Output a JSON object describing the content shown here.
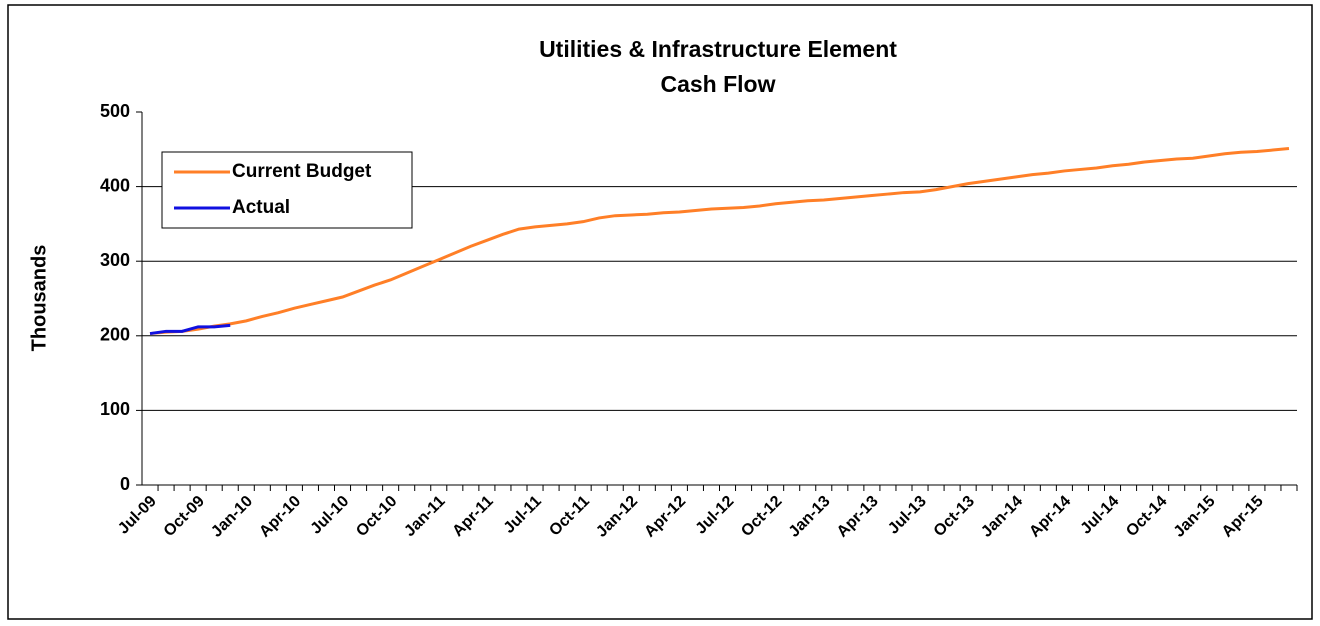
{
  "chart_data": {
    "type": "line",
    "title": [
      "Utilities & Infrastructure Element",
      "Cash Flow"
    ],
    "y_label": "Thousands",
    "categories": [
      "Jul-09",
      null,
      null,
      "Oct-09",
      null,
      null,
      "Jan-10",
      null,
      null,
      "Apr-10",
      null,
      null,
      "Jul-10",
      null,
      null,
      "Oct-10",
      null,
      null,
      "Jan-11",
      null,
      null,
      "Apr-11",
      null,
      null,
      "Jul-11",
      null,
      null,
      "Oct-11",
      null,
      null,
      "Jan-12",
      null,
      null,
      "Apr-12",
      null,
      null,
      "Jul-12",
      null,
      null,
      "Oct-12",
      null,
      null,
      "Jan-13",
      null,
      null,
      "Apr-13",
      null,
      null,
      "Jul-13",
      null,
      null,
      "Oct-13",
      null,
      null,
      "Jan-14",
      null,
      null,
      "Apr-14",
      null,
      null,
      "Jul-14",
      null,
      null,
      "Oct-14",
      null,
      null,
      "Jan-15",
      null,
      null,
      "Apr-15",
      null,
      null
    ],
    "series": [
      {
        "name": "Current Budget",
        "color": "#ff7f27",
        "values": [
          203,
          205,
          206,
          209,
          213,
          216,
          220,
          226,
          231,
          237,
          242,
          247,
          252,
          260,
          268,
          275,
          284,
          293,
          302,
          311,
          320,
          328,
          336,
          343,
          346,
          348,
          350,
          353,
          358,
          361,
          362,
          363,
          365,
          366,
          368,
          370,
          371,
          372,
          374,
          377,
          379,
          381,
          382,
          384,
          386,
          388,
          390,
          392,
          393,
          396,
          400,
          404,
          407,
          410,
          413,
          416,
          418,
          421,
          423,
          425,
          428,
          430,
          433,
          435,
          437,
          438,
          441,
          444,
          446,
          447,
          449,
          451
        ]
      },
      {
        "name": "Actual",
        "color": "#1010e0",
        "values": [
          203,
          206,
          206,
          212,
          212,
          214,
          null,
          null,
          null,
          null,
          null,
          null,
          null,
          null,
          null,
          null,
          null,
          null,
          null,
          null,
          null,
          null,
          null,
          null,
          null,
          null,
          null,
          null,
          null,
          null,
          null,
          null,
          null,
          null,
          null,
          null,
          null,
          null,
          null,
          null,
          null,
          null,
          null,
          null,
          null,
          null,
          null,
          null,
          null,
          null,
          null,
          null,
          null,
          null,
          null,
          null,
          null,
          null,
          null,
          null,
          null,
          null,
          null,
          null,
          null,
          null,
          null,
          null,
          null,
          null,
          null,
          null
        ]
      }
    ],
    "ylim": [
      0,
      500
    ],
    "yticks": [
      0,
      100,
      200,
      300,
      400,
      500
    ],
    "grid": true,
    "legend": "upper left"
  }
}
